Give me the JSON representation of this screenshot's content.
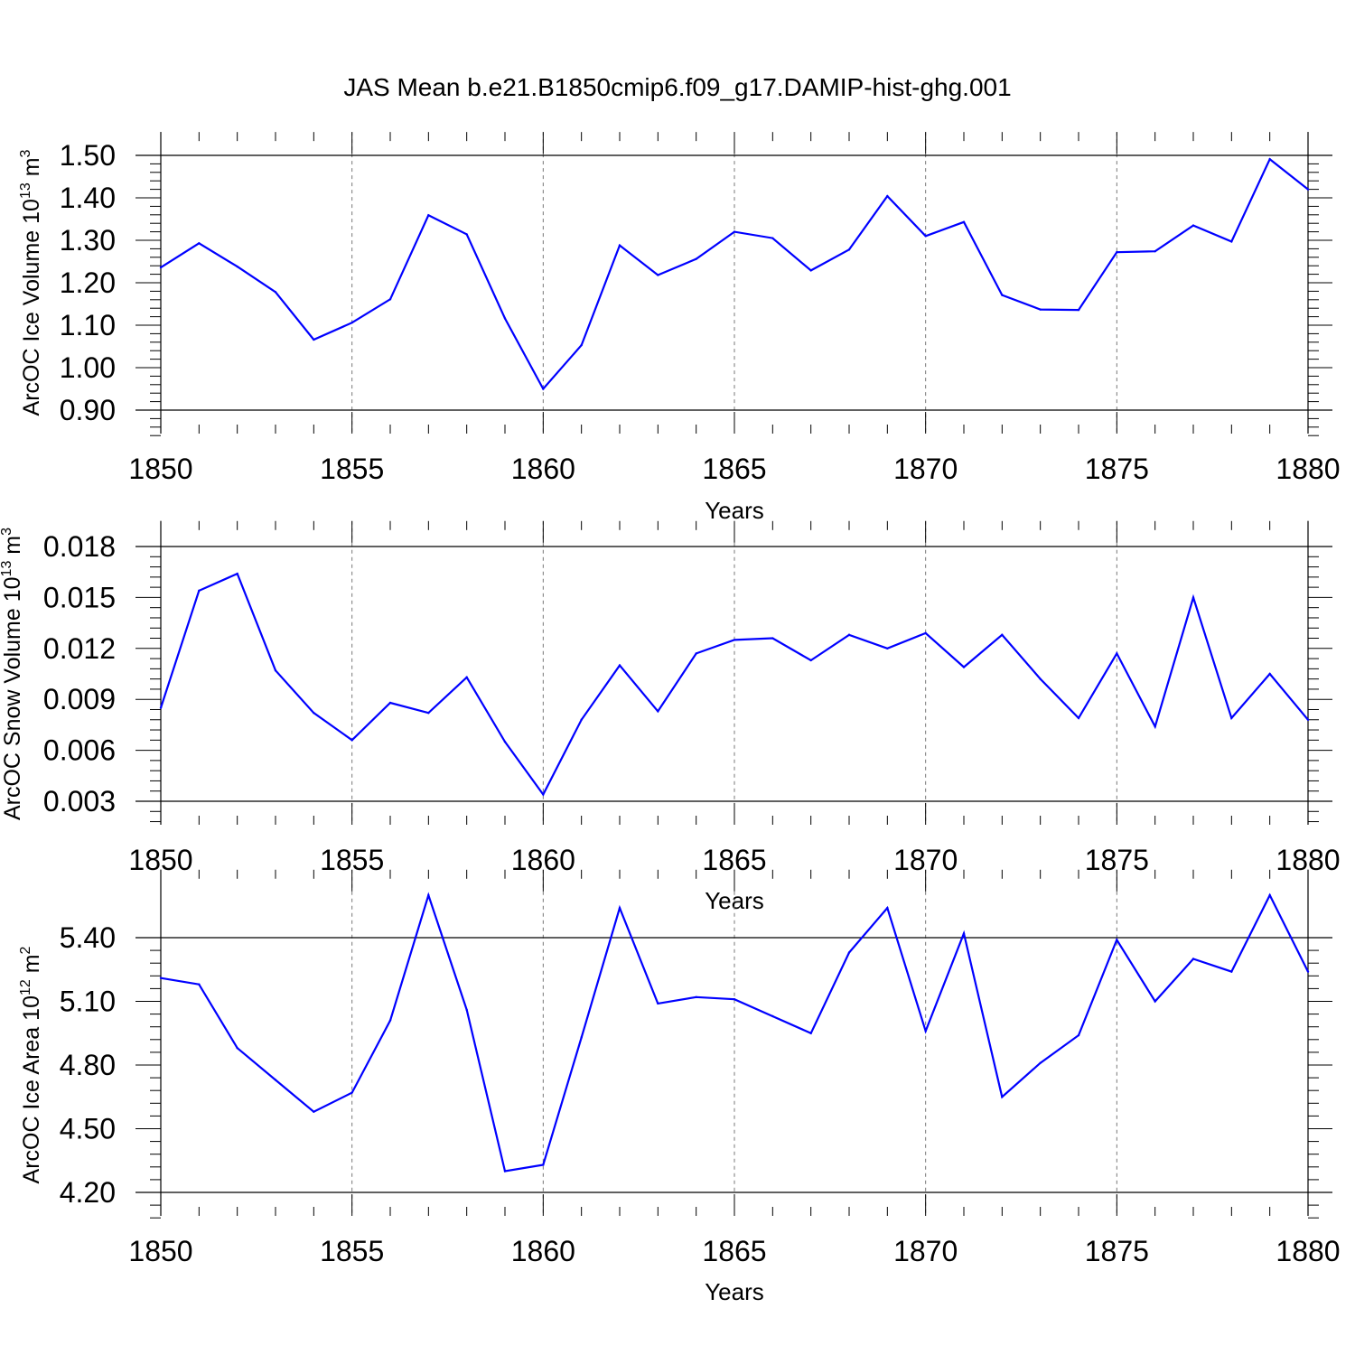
{
  "title": "JAS Mean b.e21.B1850cmip6.f09_g17.DAMIP-hist-ghg.001",
  "colors": {
    "line": "#0000ff",
    "grid": "#777777",
    "axis": "#000000"
  },
  "chart_data": [
    {
      "type": "line",
      "ylabel": "ArcOC Ice Volume 10",
      "ylabel_sup": "13",
      "ylabel_unit": " m",
      "ylabel_unit_sup": "3",
      "xlabel": "Years",
      "xlim": [
        1850,
        1880
      ],
      "ylim": [
        0.85,
        1.555
      ],
      "x_ticks": [
        "1850",
        "1855",
        "1860",
        "1865",
        "1870",
        "1875",
        "1880"
      ],
      "y_ticks": [
        "0.90",
        "1.00",
        "1.10",
        "1.20",
        "1.30",
        "1.40",
        "1.50"
      ],
      "grid": "vertical dashed at major x ticks",
      "x": [
        1850,
        1851,
        1852,
        1853,
        1854,
        1855,
        1856,
        1857,
        1858,
        1859,
        1860,
        1861,
        1862,
        1863,
        1864,
        1865,
        1866,
        1867,
        1868,
        1869,
        1870,
        1871,
        1872,
        1873,
        1874,
        1875,
        1876,
        1877,
        1878,
        1879,
        1880
      ],
      "values": [
        1.236,
        1.293,
        1.238,
        1.178,
        1.066,
        1.106,
        1.161,
        1.359,
        1.314,
        1.116,
        0.95,
        1.053,
        1.288,
        1.218,
        1.256,
        1.32,
        1.305,
        1.229,
        1.278,
        1.404,
        1.31,
        1.343,
        1.171,
        1.137,
        1.136,
        1.272,
        1.274,
        1.335,
        1.297,
        1.491,
        1.42
      ]
    },
    {
      "type": "line",
      "ylabel": "ArcOC Snow Volume 10",
      "ylabel_sup": "13",
      "ylabel_unit": " m",
      "ylabel_unit_sup": "3",
      "xlabel": "Years",
      "xlim": [
        1850,
        1880
      ],
      "ylim": [
        0.0015,
        0.0195
      ],
      "x_ticks": [
        "1850",
        "1855",
        "1860",
        "1865",
        "1870",
        "1875",
        "1880"
      ],
      "y_ticks": [
        "0.003",
        "0.006",
        "0.009",
        "0.012",
        "0.015",
        "0.018"
      ],
      "grid": "vertical dashed at major x ticks",
      "x": [
        1850,
        1851,
        1852,
        1853,
        1854,
        1855,
        1856,
        1857,
        1858,
        1859,
        1860,
        1861,
        1862,
        1863,
        1864,
        1865,
        1866,
        1867,
        1868,
        1869,
        1870,
        1871,
        1872,
        1873,
        1874,
        1875,
        1876,
        1877,
        1878,
        1879,
        1880
      ],
      "values": [
        0.0085,
        0.0154,
        0.0164,
        0.0107,
        0.0082,
        0.0066,
        0.0088,
        0.0082,
        0.0103,
        0.0065,
        0.0034,
        0.0078,
        0.011,
        0.0083,
        0.0117,
        0.0125,
        0.0126,
        0.0113,
        0.0128,
        0.012,
        0.0129,
        0.0109,
        0.0128,
        0.0102,
        0.0079,
        0.0117,
        0.0074,
        0.015,
        0.0079,
        0.0105,
        0.0078
      ]
    },
    {
      "type": "line",
      "ylabel": "ArcOC Ice Area 10",
      "ylabel_sup": "12",
      "ylabel_unit": " m",
      "ylabel_unit_sup": "2",
      "xlabel": "Years",
      "xlim": [
        1850,
        1880
      ],
      "ylim": [
        4.07,
        5.72
      ],
      "x_ticks": [
        "1850",
        "1855",
        "1860",
        "1865",
        "1870",
        "1875",
        "1880"
      ],
      "y_ticks": [
        "4.20",
        "4.50",
        "4.80",
        "5.10",
        "5.40"
      ],
      "grid": "vertical dashed at major x ticks",
      "x": [
        1850,
        1851,
        1852,
        1853,
        1854,
        1855,
        1856,
        1857,
        1858,
        1859,
        1860,
        1861,
        1862,
        1863,
        1864,
        1865,
        1866,
        1867,
        1868,
        1869,
        1870,
        1871,
        1872,
        1873,
        1874,
        1875,
        1876,
        1877,
        1878,
        1879,
        1880
      ],
      "values": [
        5.21,
        5.18,
        4.88,
        4.73,
        4.58,
        4.67,
        5.01,
        5.6,
        5.06,
        4.3,
        4.33,
        4.93,
        5.54,
        5.09,
        5.12,
        5.11,
        5.03,
        4.95,
        5.33,
        5.54,
        4.96,
        5.42,
        4.65,
        4.81,
        4.94,
        5.39,
        5.1,
        5.3,
        5.24,
        5.6,
        5.24
      ]
    }
  ]
}
